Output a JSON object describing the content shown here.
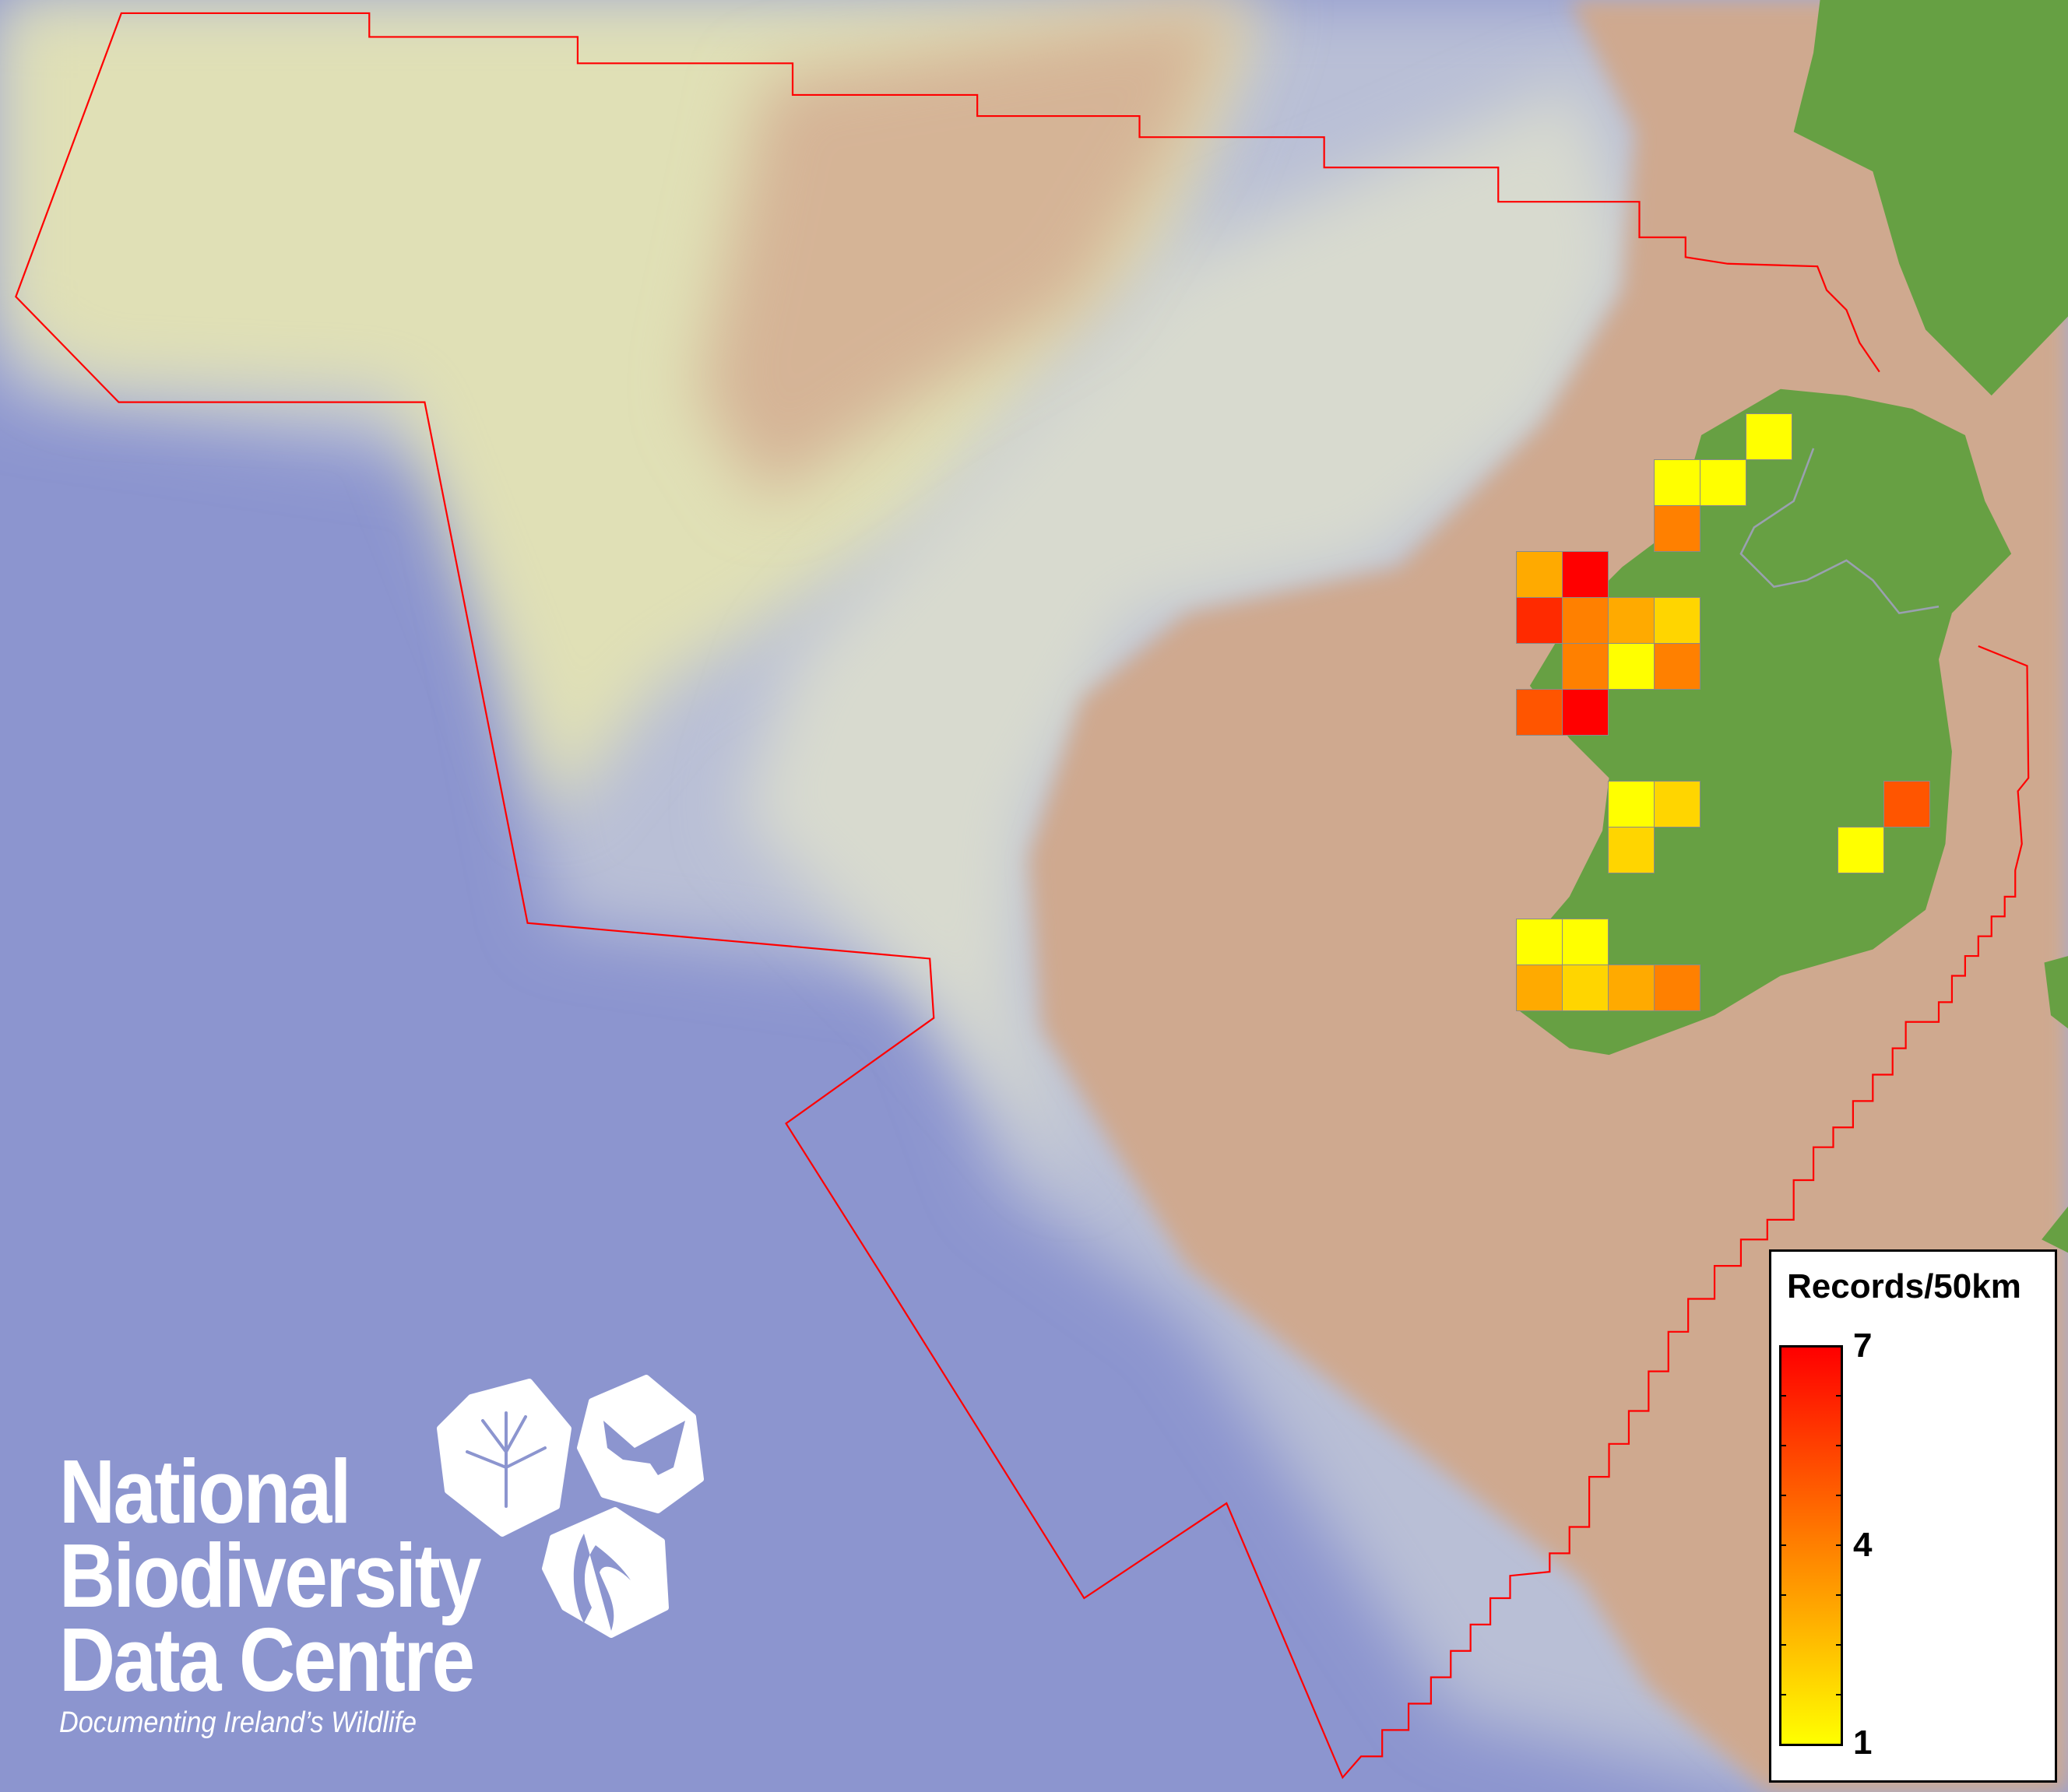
{
  "map": {
    "colors": {
      "deep_sea": "#8c95cf",
      "shelf": "#e2e2b8",
      "land_sea_tan": "#cfa98f",
      "land": "#67a043",
      "boundary": "#ff0000",
      "cell_border": "#8a8a8a"
    },
    "value_colors": {
      "1": "#ffff00",
      "2": "#ffd500",
      "3": "#ffaa00",
      "4": "#ff8000",
      "5": "#ff5500",
      "6": "#ff2a00",
      "7": "#ff0000"
    },
    "grid_cells": [
      {
        "row": 0,
        "col": 5,
        "value": 1
      },
      {
        "row": 1,
        "col": 3,
        "value": 1
      },
      {
        "row": 1,
        "col": 4,
        "value": 1
      },
      {
        "row": 2,
        "col": 3,
        "value": 4
      },
      {
        "row": 3,
        "col": 0,
        "value": 3
      },
      {
        "row": 3,
        "col": 1,
        "value": 7
      },
      {
        "row": 4,
        "col": 0,
        "value": 6
      },
      {
        "row": 4,
        "col": 1,
        "value": 4
      },
      {
        "row": 4,
        "col": 2,
        "value": 3
      },
      {
        "row": 4,
        "col": 3,
        "value": 2
      },
      {
        "row": 5,
        "col": 1,
        "value": 4
      },
      {
        "row": 5,
        "col": 2,
        "value": 1
      },
      {
        "row": 5,
        "col": 3,
        "value": 4
      },
      {
        "row": 6,
        "col": 0,
        "value": 5
      },
      {
        "row": 6,
        "col": 1,
        "value": 7
      },
      {
        "row": 8,
        "col": 2,
        "value": 1
      },
      {
        "row": 8,
        "col": 3,
        "value": 2
      },
      {
        "row": 8,
        "col": 8,
        "value": 5
      },
      {
        "row": 9,
        "col": 2,
        "value": 2
      },
      {
        "row": 9,
        "col": 7,
        "value": 1
      },
      {
        "row": 11,
        "col": 0,
        "value": 1
      },
      {
        "row": 11,
        "col": 1,
        "value": 1
      },
      {
        "row": 12,
        "col": 0,
        "value": 3
      },
      {
        "row": 12,
        "col": 1,
        "value": 2
      },
      {
        "row": 12,
        "col": 2,
        "value": 3
      },
      {
        "row": 12,
        "col": 3,
        "value": 4
      }
    ]
  },
  "legend": {
    "title": "Records/50km",
    "max_label": "7",
    "mid_label": "4",
    "min_label": "1",
    "gradient": [
      "#ffff00",
      "#ff8000",
      "#ff0000"
    ]
  },
  "logo": {
    "line1": "National",
    "line2": "Biodiversity",
    "line3": "Data Centre",
    "tagline": "Documenting Ireland’s Wildlife",
    "icons": [
      "tree-icon",
      "butterfly-icon",
      "seahorse-icon"
    ]
  }
}
